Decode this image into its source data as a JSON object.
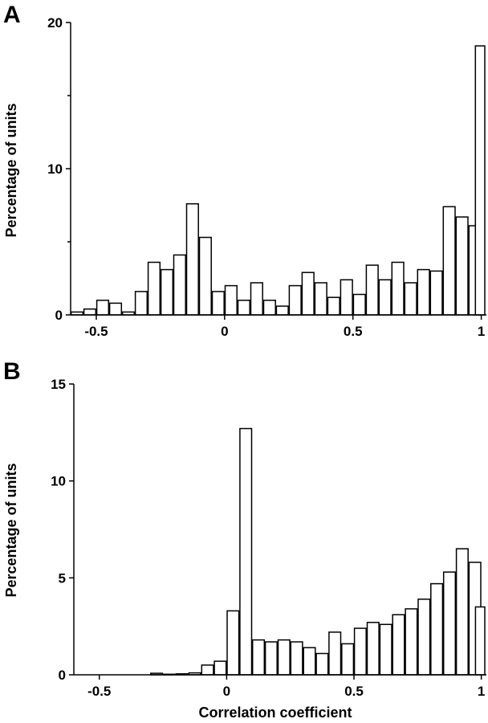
{
  "chart_data": [
    {
      "type": "bar",
      "panel": "A",
      "ylabel": "Percentage of units",
      "xlabel": "",
      "xlim": [
        -0.6,
        1.02
      ],
      "ylim": [
        0,
        20
      ],
      "xticks": [
        -0.5,
        0,
        0.5,
        1
      ],
      "xtick_labels": [
        "-0.5",
        "0",
        "0.5",
        "1"
      ],
      "yticks": [
        0,
        10,
        20
      ],
      "ytick_labels": [
        "0",
        "10",
        "20"
      ],
      "bin_width": 0.05,
      "x": [
        -0.575,
        -0.525,
        -0.475,
        -0.425,
        -0.375,
        -0.325,
        -0.275,
        -0.225,
        -0.175,
        -0.125,
        -0.075,
        -0.025,
        0.025,
        0.075,
        0.125,
        0.175,
        0.225,
        0.275,
        0.325,
        0.375,
        0.425,
        0.475,
        0.525,
        0.575,
        0.625,
        0.675,
        0.725,
        0.775,
        0.825,
        0.875,
        0.925,
        0.975,
        1.0
      ],
      "values": [
        0.2,
        0.4,
        1.0,
        0.8,
        0.2,
        1.6,
        3.6,
        3.1,
        4.1,
        7.6,
        5.3,
        1.6,
        2.0,
        1.0,
        2.2,
        1.0,
        0.6,
        2.0,
        2.9,
        2.2,
        1.2,
        2.4,
        1.4,
        3.4,
        2.4,
        3.6,
        2.2,
        3.1,
        3.0,
        7.4,
        6.7,
        6.1,
        18.4
      ]
    },
    {
      "type": "bar",
      "panel": "B",
      "ylabel": "Percentage of units",
      "xlabel": "Correlation coefficient",
      "xlim": [
        -0.6,
        1.02
      ],
      "ylim": [
        0,
        15
      ],
      "xticks": [
        -0.5,
        0,
        0.5,
        1
      ],
      "xtick_labels": [
        "-0.5",
        "0",
        "0.5",
        "1"
      ],
      "yticks": [
        0,
        5,
        10,
        15
      ],
      "ytick_labels": [
        "0",
        "5",
        "10",
        "15"
      ],
      "bin_width": 0.05,
      "x": [
        -0.575,
        -0.525,
        -0.475,
        -0.425,
        -0.375,
        -0.325,
        -0.275,
        -0.225,
        -0.175,
        -0.125,
        -0.075,
        -0.025,
        0.025,
        0.075,
        0.125,
        0.175,
        0.225,
        0.275,
        0.325,
        0.375,
        0.425,
        0.475,
        0.525,
        0.575,
        0.625,
        0.675,
        0.725,
        0.775,
        0.825,
        0.875,
        0.925,
        0.975,
        1.0
      ],
      "values": [
        0,
        0,
        0,
        0,
        0,
        0,
        0.08,
        0.03,
        0.05,
        0.1,
        0.5,
        0.7,
        3.3,
        12.7,
        1.8,
        1.7,
        1.8,
        1.7,
        1.4,
        1.1,
        2.2,
        1.6,
        2.4,
        2.7,
        2.6,
        3.1,
        3.4,
        3.9,
        4.7,
        5.3,
        6.5,
        5.8,
        3.5
      ]
    }
  ]
}
